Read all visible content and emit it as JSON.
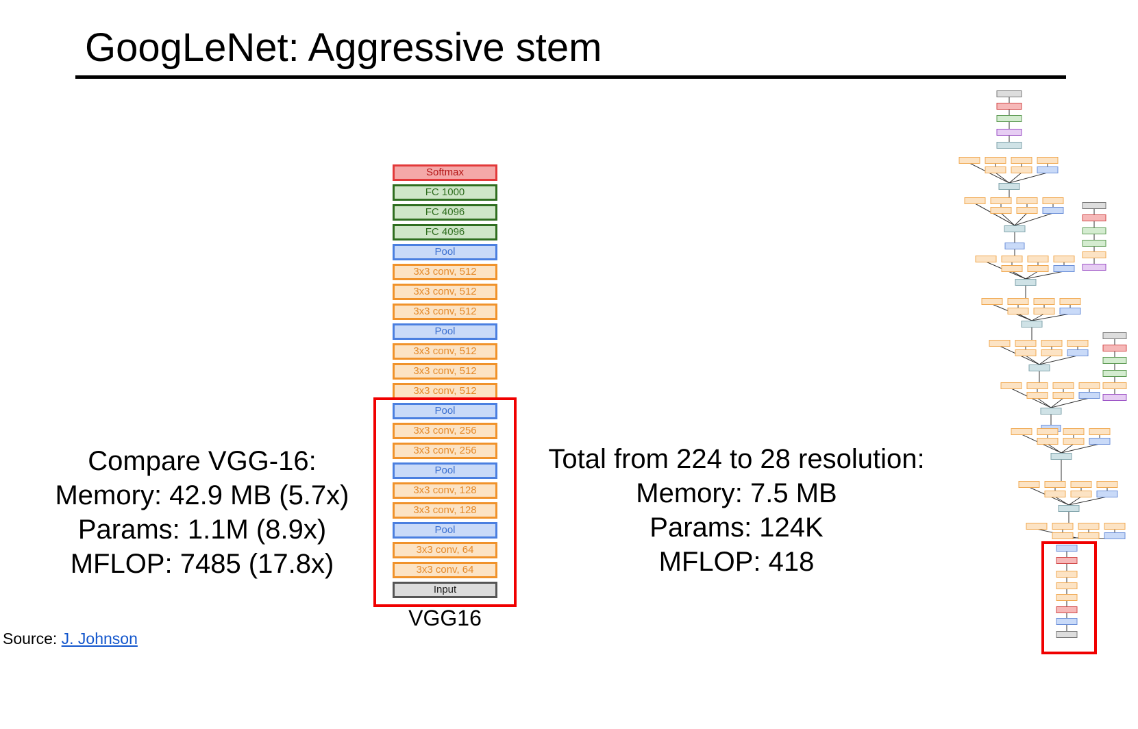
{
  "title": "GoogLeNet: Aggressive stem",
  "left_stats": {
    "line1": "Compare VGG-16:",
    "line2": "Memory: 42.9 MB (5.7x)",
    "line3": "Params: 1.1M (8.9x)",
    "line4": "MFLOP: 7485 (17.8x)"
  },
  "right_stats": {
    "line1": "Total from 224 to 28 resolution:",
    "line2": "Memory: 7.5 MB",
    "line3": "Params: 124K",
    "line4": "MFLOP: 418"
  },
  "vgg": {
    "caption": "VGG16",
    "layers": [
      {
        "label": "Softmax",
        "kind": "softmax"
      },
      {
        "label": "FC 1000",
        "kind": "fc"
      },
      {
        "label": "FC 4096",
        "kind": "fc"
      },
      {
        "label": "FC 4096",
        "kind": "fc"
      },
      {
        "label": "Pool",
        "kind": "pool"
      },
      {
        "label": "3x3 conv, 512",
        "kind": "conv"
      },
      {
        "label": "3x3 conv, 512",
        "kind": "conv"
      },
      {
        "label": "3x3 conv, 512",
        "kind": "conv"
      },
      {
        "label": "Pool",
        "kind": "pool"
      },
      {
        "label": "3x3 conv, 512",
        "kind": "conv"
      },
      {
        "label": "3x3 conv, 512",
        "kind": "conv"
      },
      {
        "label": "3x3 conv, 512",
        "kind": "conv"
      },
      {
        "label": "Pool",
        "kind": "pool"
      },
      {
        "label": "3x3 conv, 256",
        "kind": "conv"
      },
      {
        "label": "3x3 conv, 256",
        "kind": "conv"
      },
      {
        "label": "Pool",
        "kind": "pool"
      },
      {
        "label": "3x3 conv, 128",
        "kind": "conv"
      },
      {
        "label": "3x3 conv, 128",
        "kind": "conv"
      },
      {
        "label": "Pool",
        "kind": "pool"
      },
      {
        "label": "3x3 conv, 64",
        "kind": "conv"
      },
      {
        "label": "3x3 conv, 64",
        "kind": "conv"
      },
      {
        "label": "Input",
        "kind": "input"
      }
    ]
  },
  "source": {
    "prefix": "Source: ",
    "link_text": "J. Johnson"
  },
  "colors": {
    "softmax": "#e2393a",
    "fc": "#2f6e1f",
    "pool": "#4a7fe0",
    "conv": "#f0922a",
    "input": "#555555",
    "highlight": "#f00000"
  }
}
